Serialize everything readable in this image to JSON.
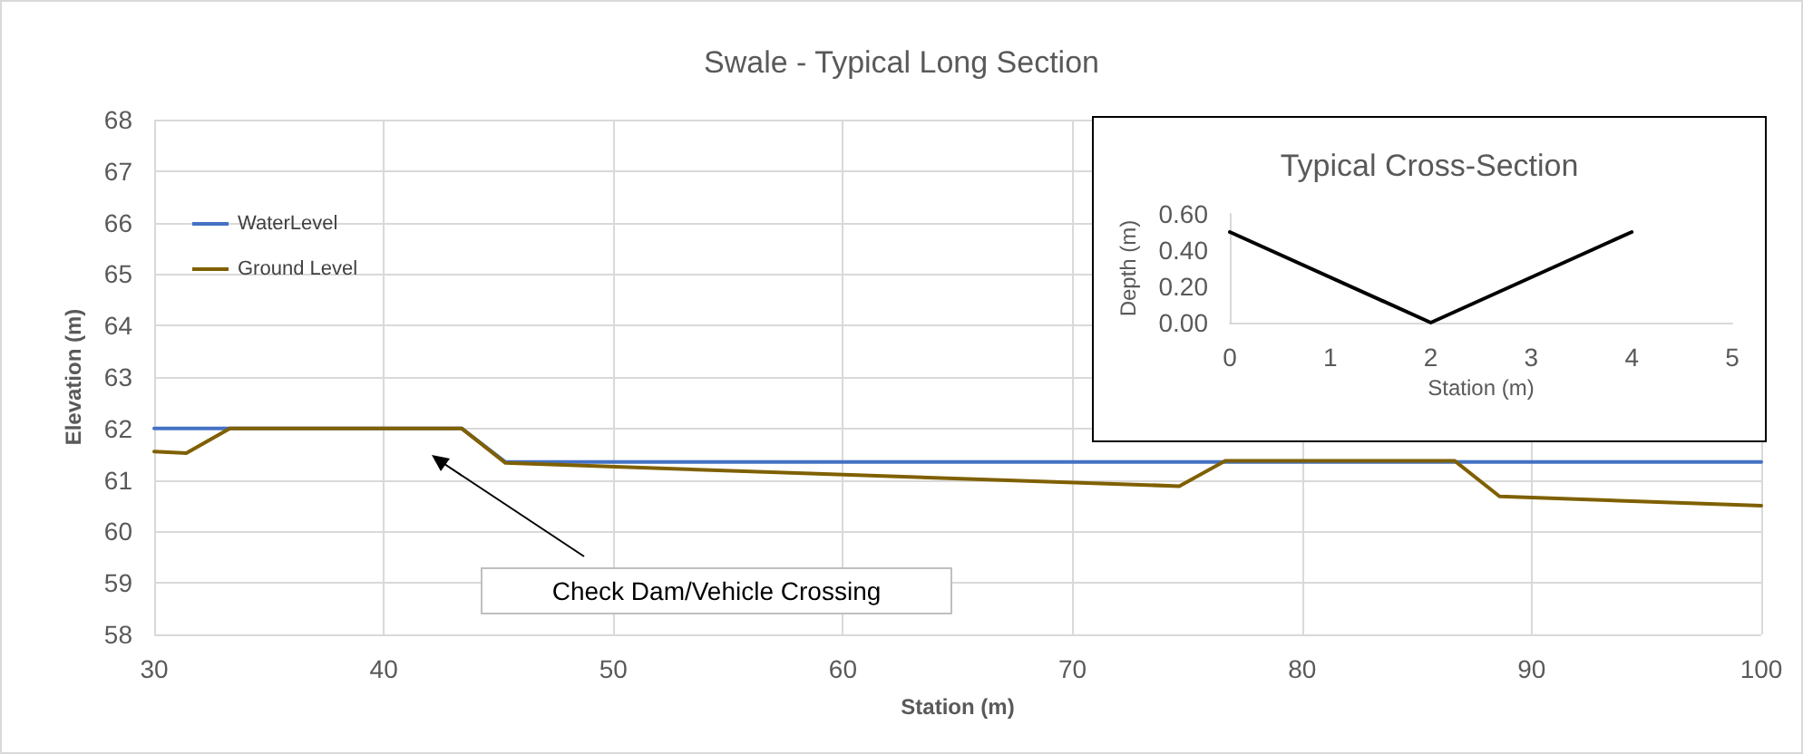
{
  "chart_data": [
    {
      "type": "line",
      "title": "Swale - Typical Long Section",
      "xlabel": "Station (m)",
      "ylabel": "Elevation (m)",
      "xlim": [
        30,
        100
      ],
      "xticks": [
        30,
        40,
        50,
        60,
        70,
        80,
        90,
        100
      ],
      "ylim": [
        58,
        68
      ],
      "yticks": [
        58,
        59,
        60,
        61,
        62,
        63,
        64,
        65,
        66,
        67,
        68
      ],
      "grid": true,
      "legend": "top left",
      "marker": "none",
      "line_style": "solid",
      "series": [
        {
          "name": "WaterLevel",
          "color": "#4472c4",
          "x": [
            30,
            33.3,
            43.4,
            45.3,
            100
          ],
          "values": [
            62,
            62,
            62,
            61.35,
            61.35
          ]
        },
        {
          "name": "Ground Level",
          "color": "#7f6000",
          "x": [
            30,
            31.4,
            33.3,
            43.4,
            45.3,
            74.65,
            76.65,
            86.65,
            88.6,
            100
          ],
          "values": [
            61.55,
            61.52,
            62,
            62,
            61.33,
            60.88,
            61.37,
            61.37,
            60.68,
            60.5
          ]
        }
      ],
      "annotations": [
        "Check Dam/Vehicle Crossing"
      ]
    },
    {
      "type": "line",
      "title": "Typical Cross-Section",
      "xlabel": "Station (m)",
      "ylabel": "Depth (m)",
      "xlim": [
        0,
        5
      ],
      "xticks": [
        0,
        1,
        2,
        3,
        4,
        5
      ],
      "ylim": [
        0,
        0.6
      ],
      "yticks": [
        {
          "value": 0,
          "label": "0.00"
        },
        {
          "value": 0.2,
          "label": "0.20"
        },
        {
          "value": 0.4,
          "label": "0.40"
        },
        {
          "value": 0.6,
          "label": "0.60"
        }
      ],
      "grid": false,
      "marker": "none",
      "line_style": "solid",
      "series": [
        {
          "color": "#000000",
          "x": [
            0,
            2,
            4
          ],
          "values": [
            0.5,
            0,
            0.5
          ]
        }
      ]
    }
  ]
}
